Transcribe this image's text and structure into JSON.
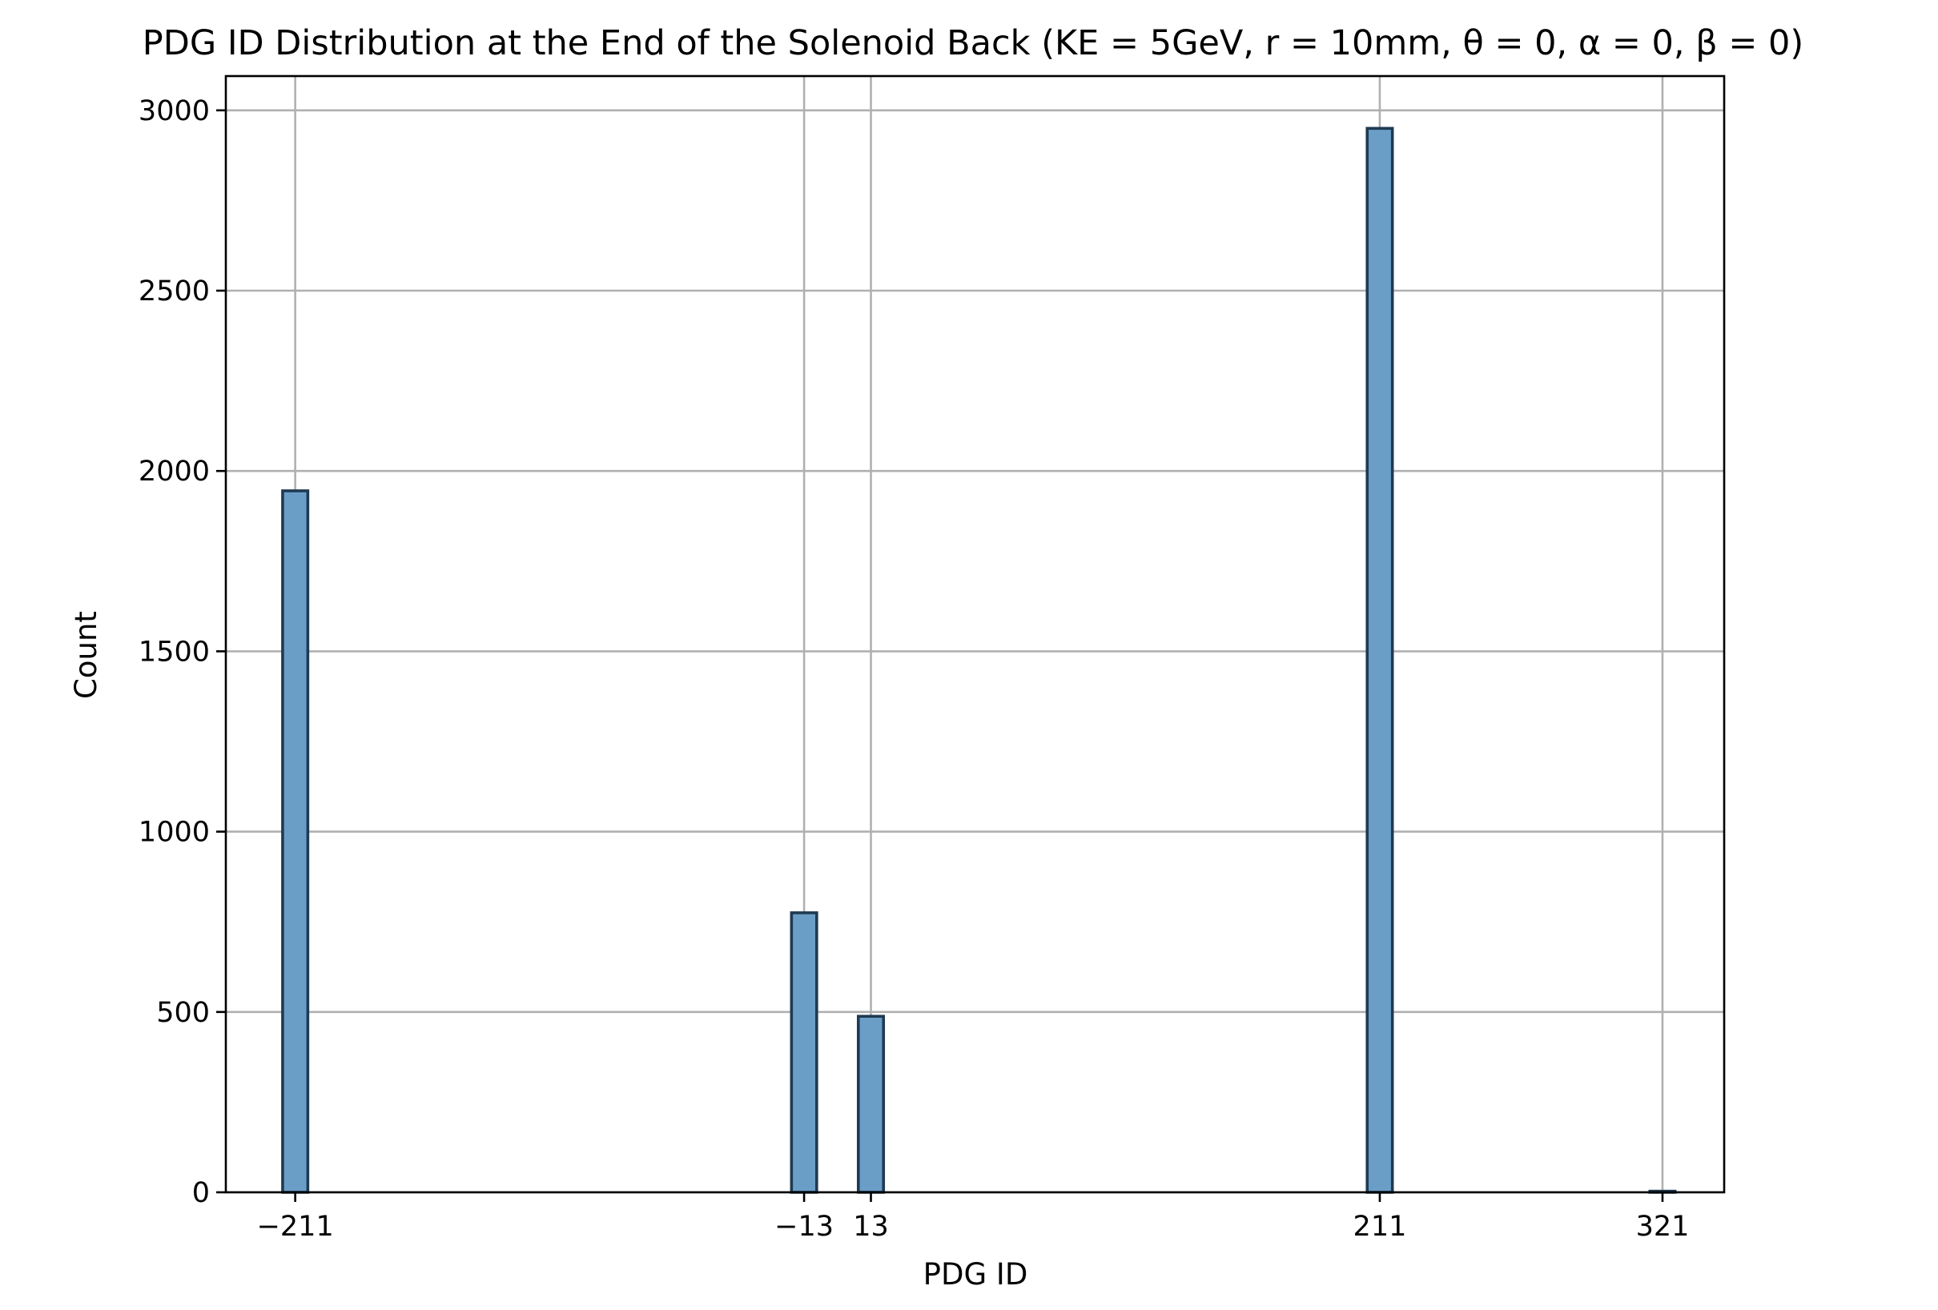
{
  "chart_data": {
    "type": "bar",
    "title": "PDG ID Distribution at the End of the Solenoid Back (KE = 5GeV, r = 10mm, θ = 0, α = 0, β = 0)",
    "xlabel": "PDG ID",
    "ylabel": "Count",
    "xlim": [
      -238,
      345
    ],
    "ylim": [
      0,
      3095
    ],
    "xticks": [
      -211,
      -13,
      13,
      211,
      321
    ],
    "xtick_labels": [
      "−211",
      "−13",
      "13",
      "211",
      "321"
    ],
    "yticks": [
      0,
      500,
      1000,
      1500,
      2000,
      2500,
      3000
    ],
    "ytick_labels": [
      "0",
      "500",
      "1000",
      "1500",
      "2000",
      "2500",
      "3000"
    ],
    "grid": true,
    "bar_width": 9.8,
    "bars": [
      {
        "x": -211,
        "value": 1945
      },
      {
        "x": -13,
        "value": 775
      },
      {
        "x": 13,
        "value": 488
      },
      {
        "x": 211,
        "value": 2950
      },
      {
        "x": 321,
        "value": 3
      }
    ],
    "bar_color": "#6a9ec7",
    "edge_color": "#1f3a52"
  }
}
